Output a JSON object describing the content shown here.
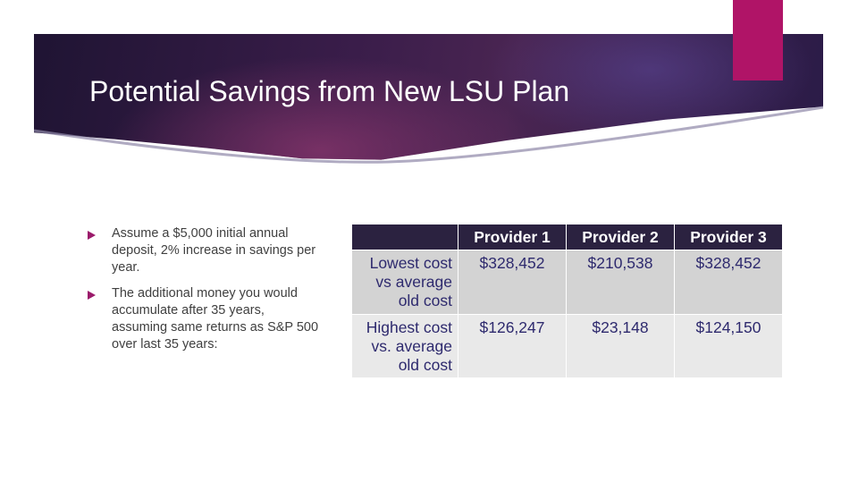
{
  "slide": {
    "title": "Potential Savings from New LSU Plan",
    "colors": {
      "accent": "#b01467",
      "header_dark": "#2a1b47",
      "table_header": "#2b2240",
      "bullet": "#9b1b6b"
    }
  },
  "bullets": [
    {
      "icon": "triangle-bullet-icon",
      "text": "Assume a $5,000 initial annual deposit, 2% increase in savings per year."
    },
    {
      "icon": "triangle-bullet-icon",
      "text": "The additional money you would accumulate after 35 years, assuming same returns as S&P 500 over last 35 years:"
    }
  ],
  "table": {
    "headers": [
      "",
      "Provider 1",
      "Provider 2",
      "Provider 3"
    ],
    "rows": [
      {
        "label": "Lowest cost vs average old cost",
        "values": [
          "$328,452",
          "$210,538",
          "$328,452"
        ]
      },
      {
        "label": "Highest cost vs. average old cost",
        "values": [
          "$126,247",
          "$23,148",
          "$124,150"
        ]
      }
    ]
  }
}
